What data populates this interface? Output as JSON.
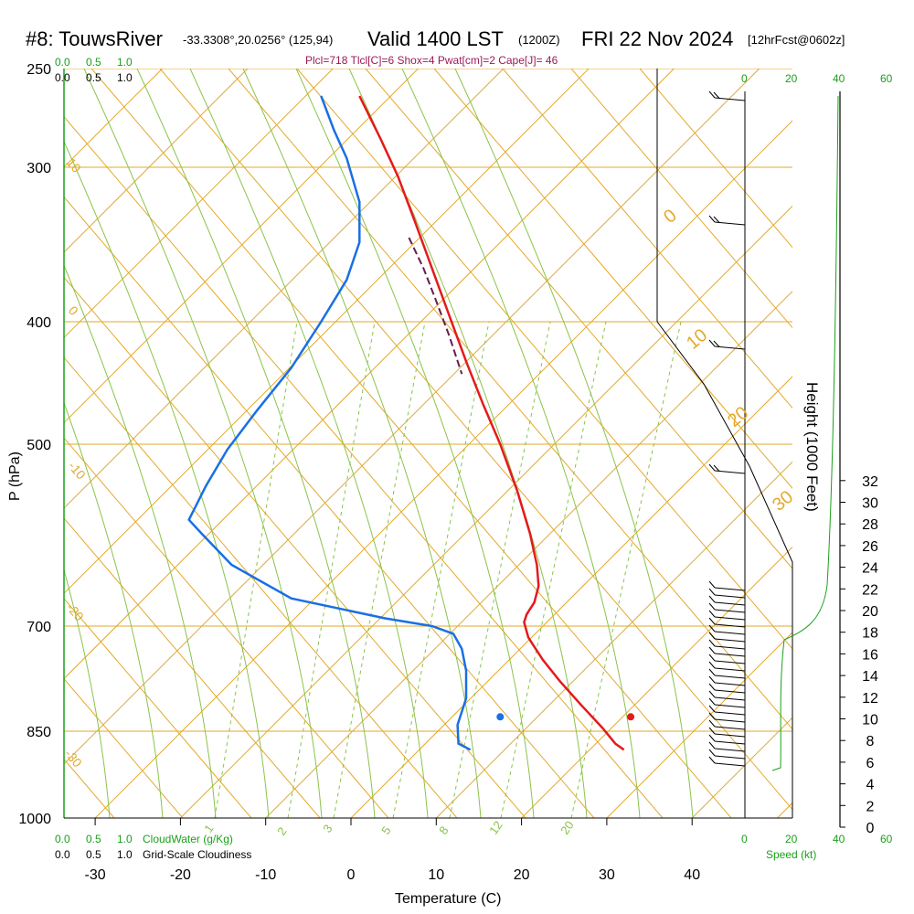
{
  "header": {
    "station": "#8: TouwsRiver",
    "coords": "-33.3308°,20.0256° (125,94)",
    "valid": "Valid 1400 LST",
    "zulu": "(1200Z)",
    "date": "FRI 22 Nov 2024",
    "forecast": "[12hrFcst@0602z]"
  },
  "params_line": "Plcl=718 Tlcl[C]=6 Shox=4 Pwat[cm]=2 Cape[J]= 46",
  "cloud_scale": {
    "top_green": [
      "0.0",
      "0.5",
      "1.0"
    ],
    "top_black": [
      "0.0",
      "0.5",
      "1.0"
    ],
    "bottom_green": [
      "0.0",
      "0.5",
      "1.0"
    ],
    "bottom_black": [
      "0.0",
      "0.5",
      "1.0"
    ],
    "cloudwater_label": "CloudWater (g/Kg)",
    "cloudiness_label": "Grid-Scale Cloudiness"
  },
  "speed_scale": {
    "top_ticks": [
      "0",
      "20",
      "40",
      "60"
    ],
    "bottom_ticks": [
      "0",
      "20",
      "40",
      "60"
    ],
    "label": "Speed (kt)"
  },
  "chart_data": {
    "type": "line",
    "title": "#8: TouwsRiver Valid 1400 LST (1200Z) FRI 22 Nov 2024",
    "xlabel": "Temperature (C)",
    "ylabel": "P (hPa)",
    "y2label": "Height (1000 Feet)",
    "x_ticks": [
      -30,
      -20,
      -10,
      0,
      10,
      20,
      30,
      40
    ],
    "p_ticks": [
      250,
      300,
      400,
      500,
      700,
      850,
      1000
    ],
    "height_ticks": [
      0,
      2,
      4,
      6,
      8,
      10,
      12,
      14,
      16,
      18,
      20,
      22,
      24,
      26,
      28,
      30,
      32
    ],
    "isotherm_labels": [
      "0",
      "10",
      "20",
      "30"
    ],
    "left_labels": [
      "10",
      "0",
      "-10",
      "-20",
      "-30"
    ],
    "mixing_ratio_labels": [
      "1",
      "2",
      "3",
      "5",
      "8",
      "12",
      "20"
    ],
    "series": [
      {
        "name": "Temperature",
        "color": "#e41a1c",
        "points": [
          [
            1.0,
            263
          ],
          [
            3.5,
            285
          ],
          [
            5.5,
            305
          ],
          [
            7.5,
            332
          ],
          [
            9.5,
            362
          ],
          [
            11.5,
            395
          ],
          [
            13.5,
            430
          ],
          [
            15.5,
            465
          ],
          [
            17.5,
            500
          ],
          [
            19.5,
            545
          ],
          [
            21,
            590
          ],
          [
            21.8,
            625
          ],
          [
            22,
            650
          ],
          [
            21.5,
            670
          ],
          [
            20.6,
            685
          ],
          [
            20.3,
            695
          ],
          [
            20.8,
            715
          ],
          [
            22.5,
            745
          ],
          [
            24.5,
            775
          ],
          [
            27,
            810
          ],
          [
            29.5,
            845
          ],
          [
            31,
            870
          ],
          [
            32,
            880
          ]
        ]
      },
      {
        "name": "Dewpoint",
        "color": "#1a6fe4",
        "points": [
          [
            -3.5,
            263
          ],
          [
            -2.0,
            280
          ],
          [
            -0.5,
            295
          ],
          [
            1.0,
            320
          ],
          [
            1.0,
            345
          ],
          [
            -0.5,
            370
          ],
          [
            -3.5,
            400
          ],
          [
            -7,
            435
          ],
          [
            -11,
            470
          ],
          [
            -14.5,
            505
          ],
          [
            -17,
            540
          ],
          [
            -19,
            575
          ],
          [
            -17.5,
            590
          ],
          [
            -14,
            625
          ],
          [
            -7,
            665
          ],
          [
            4,
            690
          ],
          [
            9.5,
            700
          ],
          [
            12,
            710
          ],
          [
            13,
            730
          ],
          [
            13.5,
            760
          ],
          [
            13.5,
            800
          ],
          [
            12.5,
            840
          ],
          [
            12.6,
            870
          ],
          [
            14,
            880
          ]
        ]
      },
      {
        "name": "Parcel",
        "color": "#6a1b4d",
        "points": [
          [
            6.8,
            342
          ],
          [
            8.5,
            362
          ],
          [
            10,
            385
          ],
          [
            11.5,
            410
          ],
          [
            13,
            440
          ]
        ]
      },
      {
        "name": "Surface dewpoint",
        "color": "#1a6fe4",
        "points": [
          [
            17.5,
            880
          ]
        ]
      },
      {
        "name": "Surface temperature",
        "color": "#e41a1c",
        "points": [
          [
            32.8,
            880
          ]
        ]
      }
    ]
  }
}
